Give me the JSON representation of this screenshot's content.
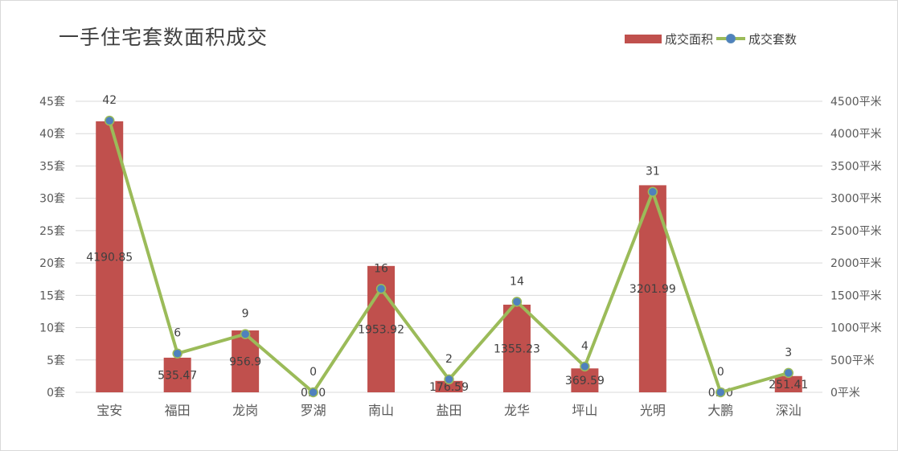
{
  "chart_data": {
    "type": "bar+line",
    "title": "一手住宅套数面积成交",
    "categories": [
      "宝安",
      "福田",
      "龙岗",
      "罗湖",
      "南山",
      "盐田",
      "龙华",
      "坪山",
      "光明",
      "大鹏",
      "深汕"
    ],
    "series": [
      {
        "name": "成交面积",
        "type": "bar",
        "axis": "right",
        "color": "#c0504d",
        "values": [
          4190.85,
          535.47,
          956.9,
          0,
          1953.92,
          176.59,
          1355.23,
          369.59,
          3201.99,
          0,
          251.41
        ],
        "labels": [
          "4190.85",
          "535.47",
          "956.9",
          "0.00",
          "1953.92",
          "176.59",
          "1355.23",
          "369.59",
          "3201.99",
          "0.00",
          "251.41"
        ]
      },
      {
        "name": "成交套数",
        "type": "line",
        "axis": "left",
        "color": "#9bbb59",
        "marker_color": "#4f81bd",
        "values": [
          42,
          6,
          9,
          0,
          16,
          2,
          14,
          4,
          31,
          0,
          3
        ],
        "labels": [
          "42",
          "6",
          "9",
          "0",
          "16",
          "2",
          "14",
          "4",
          "31",
          "0",
          "3"
        ]
      }
    ],
    "y_left": {
      "range": [
        0,
        45
      ],
      "ticks": [
        "0套",
        "5套",
        "10套",
        "15套",
        "20套",
        "25套",
        "30套",
        "35套",
        "40套",
        "45套"
      ]
    },
    "y_right": {
      "range": [
        0,
        4500
      ],
      "ticks": [
        "0平米",
        "500平米",
        "1000平米",
        "1500平米",
        "2000平米",
        "2500平米",
        "3000平米",
        "3500平米",
        "4000平米",
        "4500平米"
      ]
    },
    "grid": true,
    "legend_position": "top-right"
  }
}
